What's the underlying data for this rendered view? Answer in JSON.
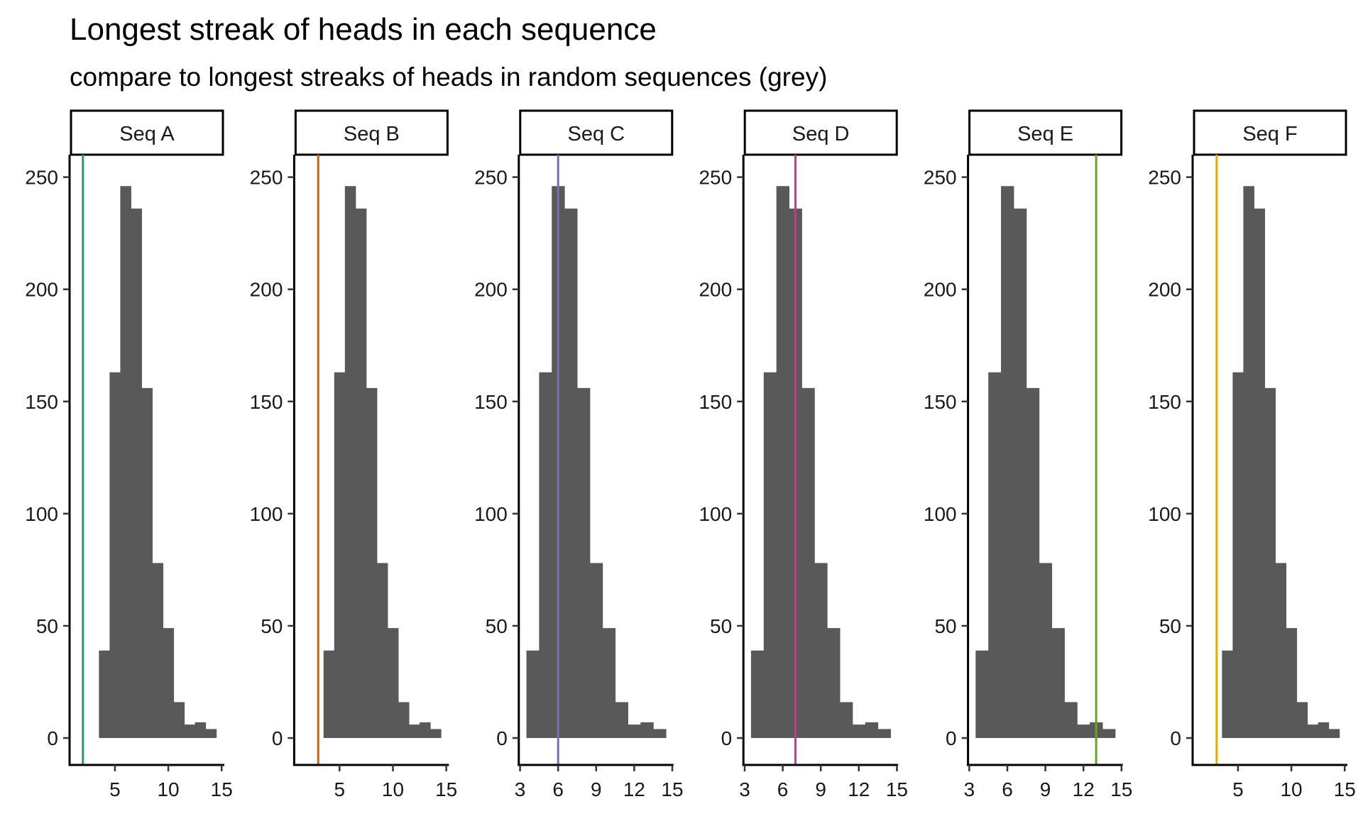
{
  "chart_data": {
    "type": "bar",
    "title": "Longest streak of heads in each sequence",
    "subtitle": "compare to longest streaks of heads in random sequences (grey)",
    "xlabel": "",
    "ylabel": "",
    "ylim": [
      -12,
      260
    ],
    "yticks": [
      0,
      50,
      100,
      150,
      200,
      250
    ],
    "bar_color": "#595959",
    "histogram": {
      "bin_centers": [
        4,
        5,
        6,
        7,
        8,
        9,
        10,
        11,
        12,
        13,
        14
      ],
      "counts": [
        39,
        163,
        246,
        236,
        156,
        78,
        49,
        16,
        6,
        7,
        4
      ],
      "binwidth": 1
    },
    "panels": [
      {
        "label": "Seq A",
        "streak": 2,
        "color": "#1B9E77",
        "xlim": [
          0.75,
          15.25
        ],
        "xticks": [
          5,
          10,
          15
        ]
      },
      {
        "label": "Seq B",
        "streak": 3,
        "color": "#D95F02",
        "xlim": [
          0.75,
          15.25
        ],
        "xticks": [
          5,
          10,
          15
        ]
      },
      {
        "label": "Seq C",
        "streak": 6,
        "color": "#7570B3",
        "xlim": [
          2.9,
          15.1
        ],
        "xticks": [
          3,
          6,
          9,
          12,
          15
        ]
      },
      {
        "label": "Seq D",
        "streak": 7,
        "color": "#E7298A",
        "xlim": [
          2.9,
          15.1
        ],
        "xticks": [
          3,
          6,
          9,
          12,
          15
        ]
      },
      {
        "label": "Seq E",
        "streak": 13,
        "color": "#66A61E",
        "xlim": [
          2.9,
          15.1
        ],
        "xticks": [
          3,
          6,
          9,
          12,
          15
        ]
      },
      {
        "label": "Seq F",
        "streak": 3,
        "color": "#E6AB02",
        "xlim": [
          0.75,
          15.25
        ],
        "xticks": [
          5,
          10,
          15
        ]
      }
    ]
  }
}
